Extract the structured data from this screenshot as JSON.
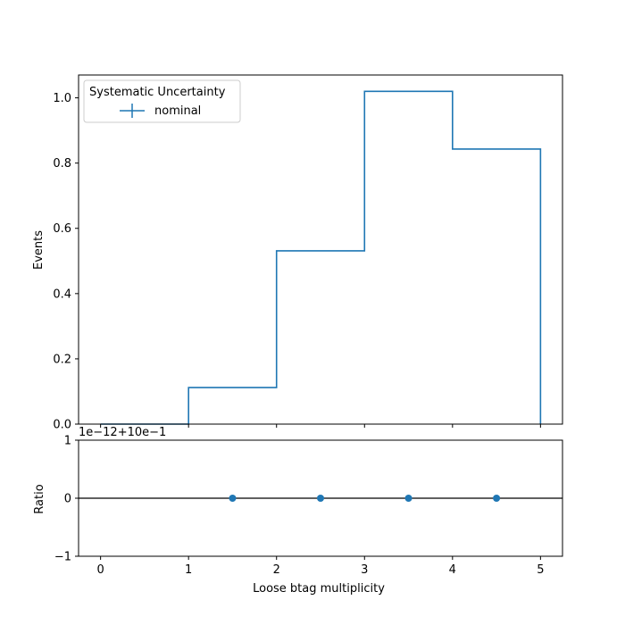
{
  "chart_data": [
    {
      "panel": "main",
      "type": "step",
      "ylabel": "Events",
      "xlim": [
        -0.25,
        5.25
      ],
      "ylim": [
        0.0,
        1.07
      ],
      "y_ticks": [
        "0.0",
        "0.2",
        "0.4",
        "0.6",
        "0.8",
        "1.0"
      ],
      "y_tick_values": [
        0.0,
        0.2,
        0.4,
        0.6,
        0.8,
        1.0
      ],
      "bin_edges": [
        0,
        1,
        2,
        3,
        4,
        5
      ],
      "series": [
        {
          "name": "nominal",
          "values": [
            0.0,
            0.112,
            0.531,
            1.02,
            0.843
          ],
          "color": "#1f77b4"
        }
      ],
      "legend": {
        "title": "Systematic Uncertainty",
        "placement": "top-left",
        "entries": [
          "nominal"
        ]
      },
      "grid": false
    },
    {
      "panel": "ratio",
      "type": "scatter",
      "ylabel": "Ratio",
      "xlabel": "Loose btag multiplicity",
      "offset_text": "1e−12+10e−1",
      "xlim": [
        -0.25,
        5.25
      ],
      "ylim": [
        -1,
        1
      ],
      "x_ticks": [
        "0",
        "1",
        "2",
        "3",
        "4",
        "5"
      ],
      "x_tick_values": [
        0,
        1,
        2,
        3,
        4,
        5
      ],
      "y_ticks": [
        "−1",
        "0",
        "1"
      ],
      "y_tick_values": [
        -1,
        0,
        1
      ],
      "reference_line": 0,
      "x": [
        1.5,
        2.5,
        3.5,
        4.5
      ],
      "y": [
        0,
        0,
        0,
        0
      ],
      "color": "#1f77b4",
      "grid": false
    }
  ]
}
